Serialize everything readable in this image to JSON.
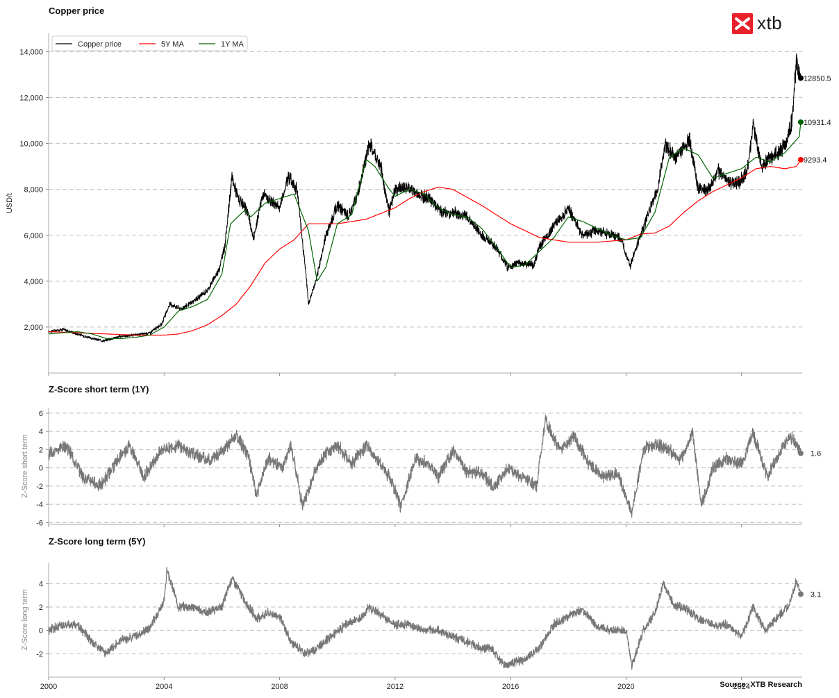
{
  "brand": {
    "logo_text": "xtb",
    "accent": "#e8212b"
  },
  "source": "Source: XTB Research",
  "chart_data": [
    {
      "type": "line",
      "title": "Copper price",
      "ylabel": "USD/t",
      "xlabel": "",
      "xlim": [
        2000,
        2026.1
      ],
      "ylim": [
        0,
        14800
      ],
      "yticks": [
        2000,
        4000,
        6000,
        8000,
        10000,
        12000,
        14000
      ],
      "ytick_labels": [
        "2,000",
        "4,000",
        "6,000",
        "8,000",
        "10,000",
        "12,000",
        "14,000"
      ],
      "grid": "horizontal dashed",
      "legend": {
        "placement": "top-left",
        "entries": [
          "Copper price",
          "5Y MA",
          "1Y MA"
        ]
      },
      "series": [
        {
          "name": "Copper price",
          "color": "#000000",
          "last_label": "12850.5",
          "x": [
            2000,
            2000.5,
            2001,
            2001.5,
            2001.9,
            2002.5,
            2003,
            2003.5,
            2003.9,
            2004.2,
            2004.6,
            2005,
            2005.5,
            2005.9,
            2006.1,
            2006.35,
            2006.6,
            2006.9,
            2007.1,
            2007.4,
            2007.7,
            2008,
            2008.3,
            2008.6,
            2008.9,
            2009,
            2009.3,
            2009.6,
            2010,
            2010.4,
            2010.7,
            2011,
            2011.1,
            2011.5,
            2011.8,
            2012,
            2012.4,
            2012.8,
            2013.2,
            2013.6,
            2014,
            2014.5,
            2015,
            2015.5,
            2015.9,
            2016.3,
            2016.8,
            2017,
            2017.5,
            2018,
            2018.5,
            2018.9,
            2019.3,
            2019.8,
            2020.15,
            2020.5,
            2020.9,
            2021.1,
            2021.35,
            2021.7,
            2022,
            2022.2,
            2022.5,
            2022.9,
            2023.2,
            2023.6,
            2023.9,
            2024.2,
            2024.4,
            2024.7,
            2025,
            2025.3,
            2025.55,
            2025.75,
            2025.9,
            2026,
            2026.05
          ],
          "y": [
            1800,
            1900,
            1700,
            1500,
            1400,
            1600,
            1650,
            1750,
            2100,
            3000,
            2800,
            3100,
            3600,
            4500,
            5500,
            8500,
            7500,
            7000,
            5800,
            7800,
            7500,
            7200,
            8600,
            8000,
            4500,
            3000,
            4200,
            6000,
            7300,
            6800,
            7800,
            9400,
            10000,
            9000,
            7000,
            8000,
            8100,
            7800,
            7600,
            7000,
            7000,
            6800,
            6000,
            5500,
            4600,
            4800,
            4700,
            5500,
            6400,
            7200,
            6000,
            6200,
            6100,
            5900,
            4700,
            6000,
            7400,
            8000,
            10000,
            9400,
            9800,
            10200,
            8000,
            8000,
            8800,
            8300,
            8300,
            8800,
            10800,
            9000,
            9400,
            9600,
            10000,
            11000,
            13500,
            13100,
            12850.5
          ]
        },
        {
          "name": "5Y MA",
          "color": "#ff0000",
          "last_label": "9293.4",
          "x": [
            2000,
            2001,
            2002,
            2003,
            2004,
            2004.5,
            2005,
            2005.5,
            2006,
            2006.5,
            2007,
            2007.5,
            2008,
            2008.5,
            2009,
            2010,
            2011,
            2012,
            2012.5,
            2013,
            2013.5,
            2014,
            2015,
            2016,
            2017,
            2018,
            2019,
            2020,
            2020.5,
            2021,
            2021.5,
            2022,
            2022.5,
            2023,
            2023.5,
            2024,
            2024.5,
            2025,
            2025.5,
            2025.9,
            2026.05
          ],
          "y": [
            1800,
            1750,
            1700,
            1650,
            1650,
            1700,
            1850,
            2100,
            2500,
            3000,
            3800,
            4800,
            5400,
            5800,
            6500,
            6500,
            6700,
            7200,
            7600,
            7900,
            8100,
            8000,
            7300,
            6500,
            5900,
            5700,
            5700,
            5800,
            6050,
            6100,
            6400,
            7000,
            7500,
            7900,
            8200,
            8500,
            8900,
            9000,
            8900,
            9000,
            9293.4
          ]
        },
        {
          "name": "1Y MA",
          "color": "#006400",
          "last_label": "10931.4",
          "x": [
            2000,
            2001,
            2001.5,
            2002,
            2002.5,
            2003,
            2003.5,
            2004,
            2004.5,
            2005,
            2005.5,
            2006,
            2006.3,
            2006.8,
            2007,
            2007.5,
            2008,
            2008.5,
            2009,
            2009.3,
            2009.6,
            2010,
            2010.5,
            2011,
            2011.3,
            2011.8,
            2012,
            2012.5,
            2013,
            2013.5,
            2014,
            2014.5,
            2015,
            2015.5,
            2016,
            2016.5,
            2017,
            2017.5,
            2018,
            2018.5,
            2019,
            2019.5,
            2020,
            2020.5,
            2021,
            2021.5,
            2022,
            2022.5,
            2023,
            2023.5,
            2024,
            2024.5,
            2025,
            2025.5,
            2026,
            2026.05
          ],
          "y": [
            1700,
            1800,
            1700,
            1500,
            1500,
            1550,
            1650,
            2000,
            2700,
            2900,
            3200,
            4300,
            6500,
            7100,
            6800,
            7400,
            7600,
            7800,
            6200,
            4000,
            4600,
            6500,
            6900,
            9300,
            9000,
            8000,
            7700,
            8000,
            7800,
            7200,
            6900,
            6800,
            6300,
            5500,
            4600,
            4700,
            5300,
            5900,
            6800,
            6600,
            6300,
            6000,
            5800,
            5900,
            7000,
            9400,
            9800,
            9500,
            8500,
            8700,
            8900,
            9400,
            9200,
            9600,
            10300,
            10931.4
          ]
        }
      ]
    },
    {
      "type": "line",
      "title": "Z-Score short term (1Y)",
      "ylabel": "Z-Score short term",
      "xlim": [
        2000,
        2026.1
      ],
      "ylim": [
        -6.2,
        6.6
      ],
      "yticks": [
        -6,
        -4,
        -2,
        0,
        2,
        4,
        6
      ],
      "ytick_labels": [
        "-6",
        "-4",
        "-2",
        "0",
        "2",
        "4",
        "6"
      ],
      "grid": "horizontal dashed",
      "series": [
        {
          "name": "",
          "color": "#777777",
          "last_label": "1.6",
          "x": [
            2000,
            2000.6,
            2001.2,
            2001.8,
            2002.3,
            2002.8,
            2003.3,
            2003.9,
            2004.5,
            2005,
            2005.6,
            2006.2,
            2006.5,
            2006.9,
            2007.2,
            2007.6,
            2008.1,
            2008.4,
            2008.8,
            2009.2,
            2009.6,
            2010,
            2010.5,
            2011,
            2011.4,
            2011.8,
            2012.2,
            2012.7,
            2013.1,
            2013.5,
            2014,
            2014.5,
            2015,
            2015.4,
            2015.9,
            2016.4,
            2016.9,
            2017.2,
            2017.7,
            2018.2,
            2018.7,
            2019.2,
            2019.7,
            2020.2,
            2020.6,
            2021,
            2021.4,
            2021.9,
            2022.3,
            2022.6,
            2023,
            2023.5,
            2024,
            2024.4,
            2024.9,
            2025.3,
            2025.7,
            2026.05
          ],
          "y": [
            1.5,
            2.5,
            -1,
            -2,
            0.5,
            2.5,
            -1,
            2,
            2.5,
            1.5,
            0.8,
            2.5,
            3.5,
            1.5,
            -3,
            1,
            0,
            2.5,
            -4.3,
            -0.5,
            1.5,
            2.5,
            0.5,
            2.5,
            0.8,
            -1,
            -4.2,
            1,
            0.5,
            -1,
            2,
            -0.5,
            -0.5,
            -2.2,
            0,
            -1,
            -2,
            5.2,
            2,
            3.5,
            0.5,
            -1,
            -0.5,
            -5,
            2,
            2.5,
            2.2,
            0.8,
            4,
            -4.2,
            0,
            1,
            0.5,
            3.8,
            -1,
            1.5,
            3.5,
            1.6
          ]
        }
      ]
    },
    {
      "type": "line",
      "title": "Z-Score long term (5Y)",
      "ylabel": "Z-Score long term",
      "xlim": [
        2000,
        2026.1
      ],
      "ylim": [
        -4,
        5.8
      ],
      "yticks": [
        -2,
        0,
        2,
        4
      ],
      "ytick_labels": [
        "-2",
        "0",
        "2",
        "4"
      ],
      "grid": "horizontal dashed",
      "series": [
        {
          "name": "",
          "color": "#777777",
          "last_label": "3.1",
          "x": [
            2000,
            2000.5,
            2001,
            2001.5,
            2002,
            2002.5,
            2003,
            2003.5,
            2004,
            2004.1,
            2004.5,
            2005,
            2005.5,
            2006,
            2006.35,
            2006.8,
            2007.2,
            2007.6,
            2008,
            2008.4,
            2008.9,
            2009.3,
            2009.8,
            2010.3,
            2010.8,
            2011.1,
            2011.6,
            2012,
            2012.5,
            2013,
            2013.5,
            2014,
            2014.5,
            2015,
            2015.3,
            2015.8,
            2016,
            2016.5,
            2017,
            2017.5,
            2018,
            2018.5,
            2019,
            2019.5,
            2020,
            2020.2,
            2020.6,
            2021,
            2021.3,
            2021.7,
            2022,
            2022.5,
            2023,
            2023.5,
            2024,
            2024.4,
            2024.8,
            2025.2,
            2025.6,
            2025.9,
            2026.05
          ],
          "y": [
            0,
            0.5,
            0.5,
            -1,
            -2,
            -0.8,
            -0.5,
            0.2,
            2.5,
            5.2,
            2,
            2,
            1.5,
            2,
            4.5,
            2.5,
            1,
            1.5,
            1.2,
            -1,
            -2,
            -1.5,
            -0.5,
            0.5,
            1,
            2,
            1.2,
            0.5,
            0.5,
            0,
            0,
            -0.5,
            -1,
            -1.5,
            -1.5,
            -3,
            -2.8,
            -2.5,
            -1.5,
            0.5,
            1.2,
            1.8,
            0.3,
            0,
            0,
            -3,
            0,
            1.5,
            4,
            2,
            2,
            1,
            0.5,
            0.5,
            -0.5,
            2,
            0,
            1,
            2,
            4.2,
            3.1
          ]
        }
      ]
    }
  ]
}
